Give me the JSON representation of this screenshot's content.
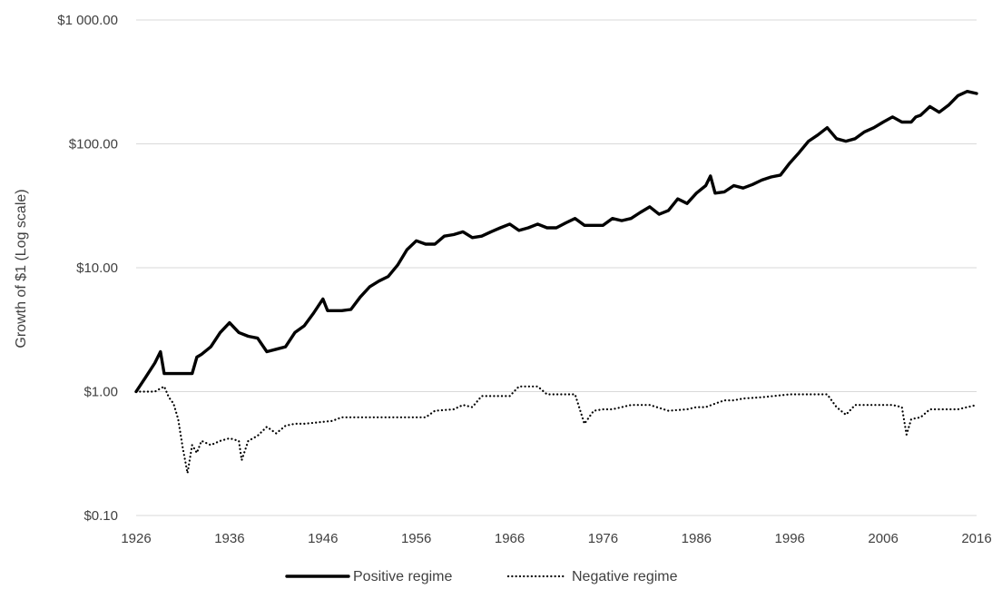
{
  "chart_data": {
    "type": "line",
    "title": "",
    "xlabel": "",
    "ylabel": "Growth of $1 (Log scale)",
    "yscale": "log",
    "ylim": [
      0.1,
      1000
    ],
    "xlim": [
      1926,
      2016
    ],
    "grid": "horizontal",
    "legend_position": "bottom-center",
    "y_ticks": [
      {
        "value": 0.1,
        "label": "$0.10"
      },
      {
        "value": 1,
        "label": "$1.00"
      },
      {
        "value": 10,
        "label": "$10.00"
      },
      {
        "value": 100,
        "label": "$100.00"
      },
      {
        "value": 1000,
        "label": "$1 000.00"
      }
    ],
    "x_ticks": [
      {
        "value": 1926,
        "label": "1926"
      },
      {
        "value": 1936,
        "label": "1936"
      },
      {
        "value": 1946,
        "label": "1946"
      },
      {
        "value": 1956,
        "label": "1956"
      },
      {
        "value": 1966,
        "label": "1966"
      },
      {
        "value": 1976,
        "label": "1976"
      },
      {
        "value": 1986,
        "label": "1986"
      },
      {
        "value": 1996,
        "label": "1996"
      },
      {
        "value": 2006,
        "label": "2006"
      },
      {
        "value": 2016,
        "label": "2016"
      }
    ],
    "series": [
      {
        "name": "Positive regime",
        "style": "solid",
        "color": "#000000",
        "x": [
          1926,
          1927,
          1928,
          1928.6,
          1929,
          1929.3,
          1930,
          1932,
          1932.5,
          1933,
          1934,
          1935,
          1936,
          1937,
          1938,
          1939,
          1940,
          1941,
          1942,
          1943,
          1944,
          1945,
          1946,
          1946.5,
          1947,
          1948,
          1949,
          1950,
          1951,
          1952,
          1953,
          1954,
          1955,
          1956,
          1957,
          1958,
          1959,
          1960,
          1961,
          1962,
          1963,
          1964,
          1965,
          1966,
          1967,
          1968,
          1969,
          1970,
          1971,
          1972,
          1973,
          1974,
          1975,
          1976,
          1977,
          1978,
          1979,
          1980,
          1981,
          1982,
          1983,
          1984,
          1985,
          1986,
          1987,
          1987.5,
          1988,
          1989,
          1990,
          1991,
          1992,
          1993,
          1994,
          1995,
          1996,
          1997,
          1998,
          1999,
          2000,
          2001,
          2002,
          2003,
          2004,
          2005,
          2006,
          2007,
          2008,
          2009,
          2009.5,
          2010,
          2011,
          2012,
          2013,
          2014,
          2015,
          2016
        ],
        "y": [
          1.0,
          1.3,
          1.7,
          2.1,
          1.4,
          1.4,
          1.4,
          1.4,
          1.9,
          2.0,
          2.3,
          3.0,
          3.6,
          3.0,
          2.8,
          2.7,
          2.1,
          2.2,
          2.3,
          3.0,
          3.4,
          4.3,
          5.6,
          4.5,
          4.5,
          4.5,
          4.6,
          5.8,
          7.0,
          7.8,
          8.5,
          10.5,
          14.0,
          16.5,
          15.5,
          15.5,
          18.0,
          18.5,
          19.5,
          17.5,
          18.0,
          19.5,
          21.0,
          22.5,
          20.0,
          21.0,
          22.5,
          21.0,
          21.0,
          23.0,
          25.0,
          22.0,
          22.0,
          22.0,
          25.0,
          24.0,
          25.0,
          28.0,
          31.0,
          27.0,
          29.0,
          36.0,
          33.0,
          40.0,
          46.0,
          55.0,
          40.0,
          41.0,
          46.0,
          44.0,
          47.0,
          51.0,
          54.0,
          56.0,
          70.0,
          85.0,
          105.0,
          118.0,
          135.0,
          110.0,
          105.0,
          110.0,
          125.0,
          135.0,
          150.0,
          165.0,
          150.0,
          150.0,
          165.0,
          170.0,
          200.0,
          180.0,
          205.0,
          245.0,
          265.0,
          255.0
        ]
      },
      {
        "name": "Negative regime",
        "style": "dotted",
        "color": "#000000",
        "x": [
          1926,
          1927,
          1928,
          1929,
          1929.5,
          1930,
          1930.5,
          1931,
          1931.5,
          1932,
          1932.5,
          1933,
          1934,
          1935,
          1936,
          1937,
          1937.3,
          1938,
          1939,
          1940,
          1941,
          1942,
          1943,
          1944,
          1945,
          1946,
          1947,
          1948,
          1950,
          1952,
          1955,
          1957,
          1958,
          1960,
          1961,
          1962,
          1963,
          1965,
          1966,
          1967,
          1968,
          1969,
          1970,
          1971,
          1972,
          1973,
          1974,
          1975,
          1976,
          1977,
          1979,
          1980,
          1981,
          1983,
          1985,
          1986,
          1987,
          1988,
          1989,
          1990,
          1991,
          1993,
          1996,
          1998,
          1999,
          2000,
          2001,
          2002,
          2003,
          2004,
          2005,
          2006,
          2007,
          2008,
          2008.5,
          2009,
          2010,
          2011,
          2012,
          2013,
          2014,
          2015,
          2016
        ],
        "y": [
          1.0,
          1.0,
          1.0,
          1.1,
          0.9,
          0.8,
          0.6,
          0.35,
          0.22,
          0.37,
          0.32,
          0.4,
          0.37,
          0.4,
          0.42,
          0.4,
          0.28,
          0.4,
          0.44,
          0.52,
          0.46,
          0.53,
          0.55,
          0.55,
          0.56,
          0.57,
          0.58,
          0.62,
          0.62,
          0.62,
          0.62,
          0.62,
          0.7,
          0.72,
          0.78,
          0.75,
          0.92,
          0.92,
          0.92,
          1.1,
          1.1,
          1.1,
          0.95,
          0.95,
          0.95,
          0.95,
          0.55,
          0.7,
          0.72,
          0.72,
          0.78,
          0.78,
          0.78,
          0.7,
          0.72,
          0.75,
          0.75,
          0.8,
          0.85,
          0.85,
          0.88,
          0.9,
          0.95,
          0.95,
          0.95,
          0.95,
          0.75,
          0.65,
          0.78,
          0.78,
          0.78,
          0.78,
          0.78,
          0.75,
          0.45,
          0.6,
          0.62,
          0.72,
          0.72,
          0.72,
          0.72,
          0.75,
          0.78
        ]
      }
    ]
  }
}
